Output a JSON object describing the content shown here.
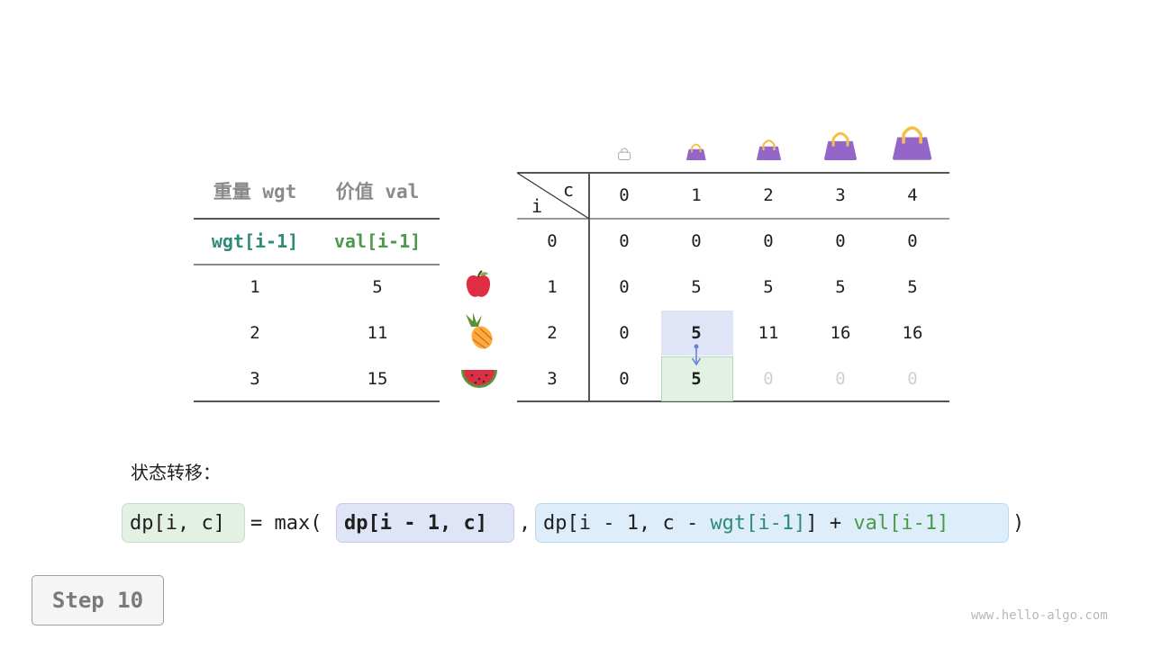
{
  "items_table": {
    "headers": [
      "重量 wgt",
      "价值 val"
    ],
    "subheaders": [
      "wgt[i-1]",
      "val[i-1]"
    ],
    "rows": [
      [
        "1",
        "5"
      ],
      [
        "2",
        "11"
      ],
      [
        "3",
        "15"
      ]
    ],
    "item_icons": [
      "apple-icon",
      "pineapple-icon",
      "watermelon-icon"
    ]
  },
  "dp_table": {
    "corner_col": "c",
    "corner_row": "i",
    "capacity_icons": [
      "empty-bag-icon",
      "bag-icon",
      "bag-icon",
      "bag-icon",
      "bag-icon"
    ],
    "col_headers": [
      "0",
      "1",
      "2",
      "3",
      "4"
    ],
    "row_headers": [
      "0",
      "1",
      "2",
      "3"
    ],
    "rows": [
      [
        "0",
        "0",
        "0",
        "0",
        "0"
      ],
      [
        "0",
        "5",
        "5",
        "5",
        "5"
      ],
      [
        "0",
        "5",
        "11",
        "16",
        "16"
      ],
      [
        "0",
        "5",
        "0",
        "0",
        "0"
      ]
    ],
    "current_cell": {
      "row": 3,
      "col": 1
    },
    "source_cell": {
      "row": 2,
      "col": 1
    },
    "colors": {
      "source": "#e0e4f7",
      "current": "#e3f1e4",
      "pending_text": "#d0d0d0",
      "bag": "#9466c9",
      "handle": "#f5c04a"
    }
  },
  "formula": {
    "label": "状态转移：",
    "lhs": "dp[i, c]",
    "eq_max": "= max(",
    "arg1": "dp[i - 1, c]",
    "comma": ",",
    "arg2_prefix": "dp[i - 1, c - ",
    "arg2_wgt": "wgt[i-1]",
    "arg2_mid": "] + ",
    "arg2_val": "val[i-1]",
    "close": ")"
  },
  "step_label": "Step 10",
  "watermark": "www.hello-algo.com"
}
